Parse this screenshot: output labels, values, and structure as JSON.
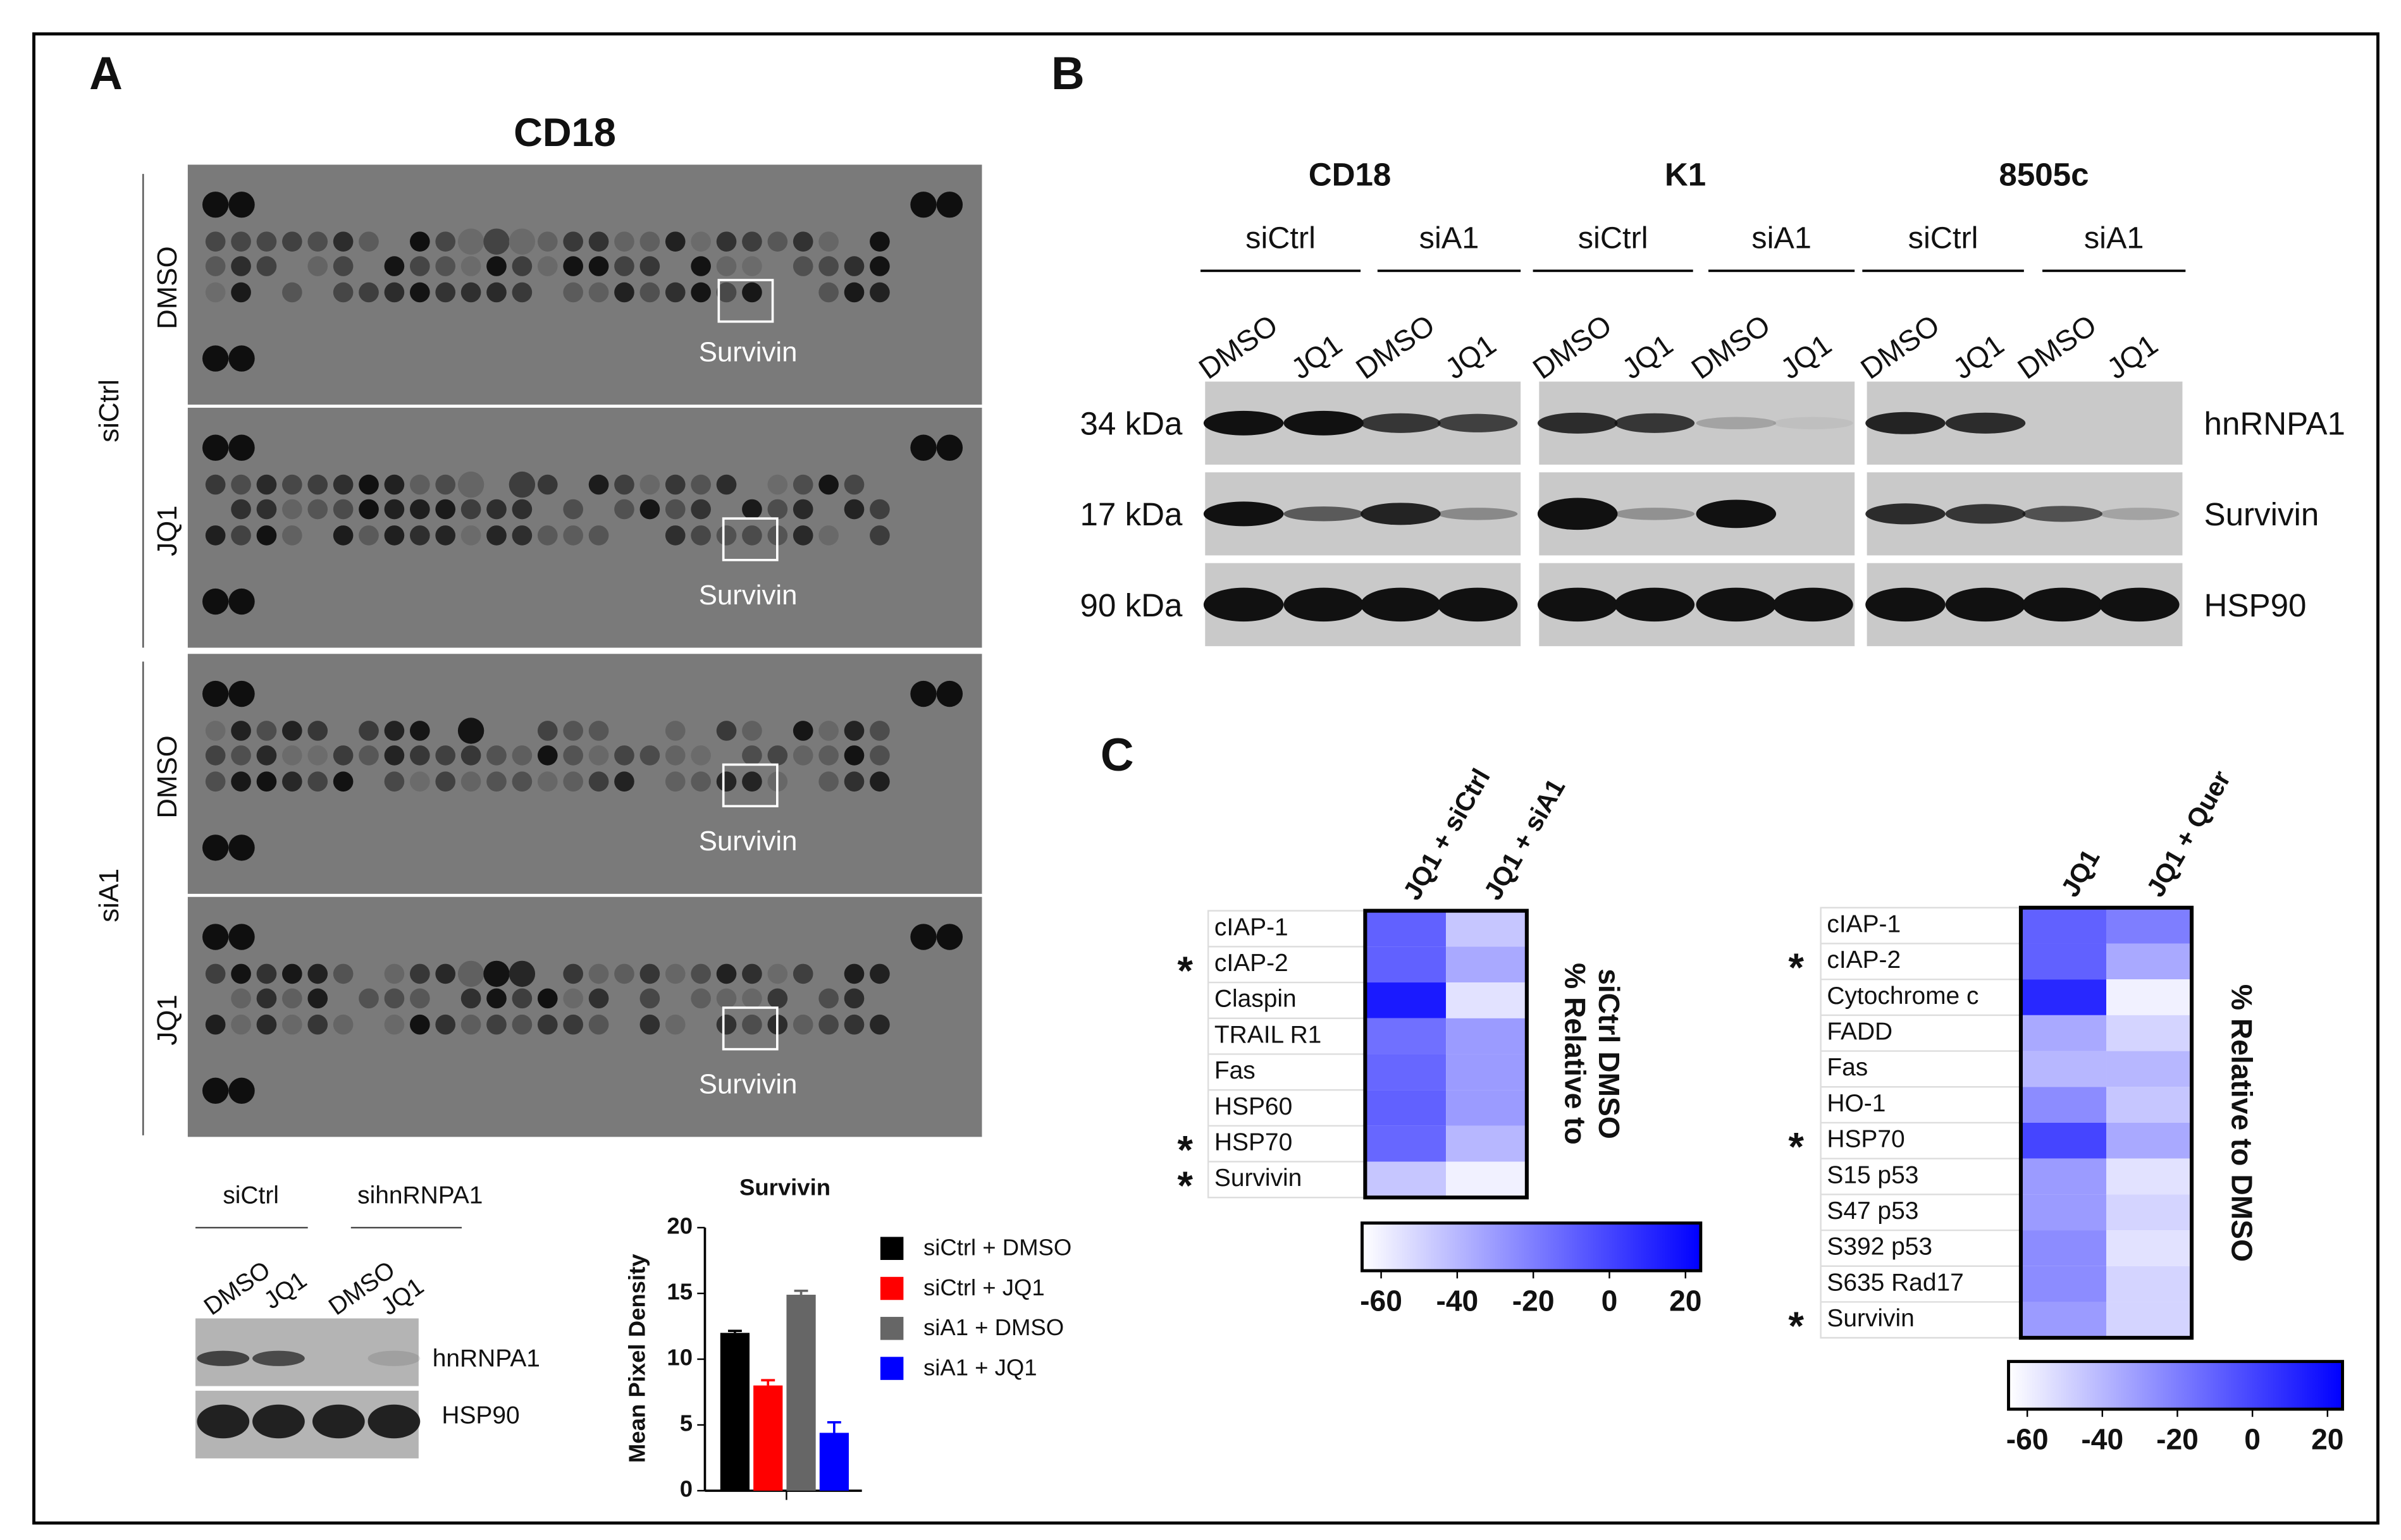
{
  "panel_a": {
    "label": "A",
    "title": "CD18",
    "groups": [
      "siCtrl",
      "siA1"
    ],
    "arrays": [
      {
        "treatment": "DMSO",
        "spot": "Survivin"
      },
      {
        "treatment": "JQ1",
        "spot": "Survivin"
      },
      {
        "treatment": "DMSO",
        "spot": "Survivin"
      },
      {
        "treatment": "JQ1",
        "spot": "Survivin"
      }
    ],
    "western": {
      "groups": [
        "siCtrl",
        "sihnRNPA1"
      ],
      "lanes": [
        "DMSO",
        "JQ1",
        "DMSO",
        "JQ1"
      ],
      "proteins": [
        "hnRNPA1",
        "HSP90"
      ]
    }
  },
  "chart_data": {
    "type": "bar",
    "title": "Survivin",
    "y_label": "Mean Pixel Density",
    "categories": [
      null
    ],
    "series": [
      {
        "name": "siCtrl + DMSO",
        "color": "#000000",
        "values": [
          12.0
        ],
        "errors": [
          0.15
        ]
      },
      {
        "name": "siCtrl + JQ1",
        "color": "#ff0000",
        "values": [
          8.0
        ],
        "errors": [
          0.4
        ]
      },
      {
        "name": "siA1 +  DMSO",
        "color": "#666666",
        "values": [
          14.9
        ],
        "errors": [
          0.3
        ]
      },
      {
        "name": "siA1 + JQ1",
        "color": "#0000ff",
        "values": [
          4.4
        ],
        "errors": [
          0.8
        ]
      }
    ],
    "ylim": [
      0,
      20
    ],
    "yticks": [
      0,
      5,
      10,
      15,
      20
    ]
  },
  "panel_b": {
    "label": "B",
    "cell_lines": [
      {
        "name": "CD18",
        "groups": [
          {
            "name": "siCtrl",
            "lanes": [
              "DMSO",
              "JQ1"
            ]
          },
          {
            "name": "siA1",
            "lanes": [
              "DMSO",
              "JQ1"
            ]
          }
        ]
      },
      {
        "name": "K1",
        "groups": [
          {
            "name": "siCtrl",
            "lanes": [
              "DMSO",
              "JQ1"
            ]
          },
          {
            "name": "siA1",
            "lanes": [
              "DMSO",
              "JQ1"
            ]
          }
        ]
      },
      {
        "name": "8505c",
        "groups": [
          {
            "name": "siCtrl",
            "lanes": [
              "DMSO",
              "JQ1"
            ]
          },
          {
            "name": "siA1",
            "lanes": [
              "DMSO",
              "JQ1"
            ]
          }
        ]
      }
    ],
    "blots": [
      {
        "size": "34 kDa",
        "protein": "hnRNPA1"
      },
      {
        "size": "17 kDa",
        "protein": "Survivin"
      },
      {
        "size": "90 kDa",
        "protein": "HSP90"
      }
    ]
  },
  "panel_c": {
    "label": "C",
    "heatmaps": [
      {
        "columns": [
          "JQ1 + siCtrl",
          "JQ1 + siA1"
        ],
        "rows": [
          {
            "label": "cIAP-1"
          },
          {
            "label": "cIAP-2",
            "star": "*"
          },
          {
            "label": "Claspin"
          },
          {
            "label": "TRAIL R1"
          },
          {
            "label": "Fas"
          },
          {
            "label": "HSP60"
          },
          {
            "label": "HSP70",
            "star": "*"
          },
          {
            "label": "Survivin",
            "star": "*"
          }
        ],
        "values": [
          [
            -10,
            -45
          ],
          [
            -10,
            -35
          ],
          [
            15,
            -55
          ],
          [
            -15,
            -30
          ],
          [
            -12,
            -30
          ],
          [
            -10,
            -30
          ],
          [
            -12,
            -40
          ],
          [
            -45,
            -60
          ]
        ],
        "colorbar_label": [
          "% Relative to",
          "siCtrl DMSO"
        ],
        "clim": [
          -65,
          24
        ],
        "cticks": [
          -60,
          -40,
          -20,
          0,
          20
        ],
        "colormap": [
          "#ffffff",
          "#0000ff"
        ]
      },
      {
        "columns": [
          "JQ1",
          "JQ1 + Quer"
        ],
        "rows": [
          {
            "label": "cIAP-1"
          },
          {
            "label": "cIAP-2",
            "star": "*"
          },
          {
            "label": "Cytochrome c"
          },
          {
            "label": "FADD"
          },
          {
            "label": "Fas"
          },
          {
            "label": "HO-1"
          },
          {
            "label": "HSP70",
            "star": "*"
          },
          {
            "label": "S15 p53"
          },
          {
            "label": "S47 p53"
          },
          {
            "label": "S392 p53"
          },
          {
            "label": "S635 Rad17"
          },
          {
            "label": "Survivin",
            "star": "*"
          }
        ],
        "values": [
          [
            -10,
            -20
          ],
          [
            -10,
            -35
          ],
          [
            10,
            -60
          ],
          [
            -35,
            -50
          ],
          [
            -40,
            -40
          ],
          [
            -25,
            -45
          ],
          [
            0,
            -35
          ],
          [
            -30,
            -55
          ],
          [
            -30,
            -50
          ],
          [
            -25,
            -55
          ],
          [
            -25,
            -50
          ],
          [
            -30,
            -50
          ]
        ],
        "colorbar_label": [
          "% Relative to DMSO"
        ],
        "clim": [
          -65,
          24
        ],
        "cticks": [
          -60,
          -40,
          -20,
          0,
          20
        ],
        "colormap": [
          "#ffffff",
          "#0000ff"
        ]
      }
    ]
  }
}
